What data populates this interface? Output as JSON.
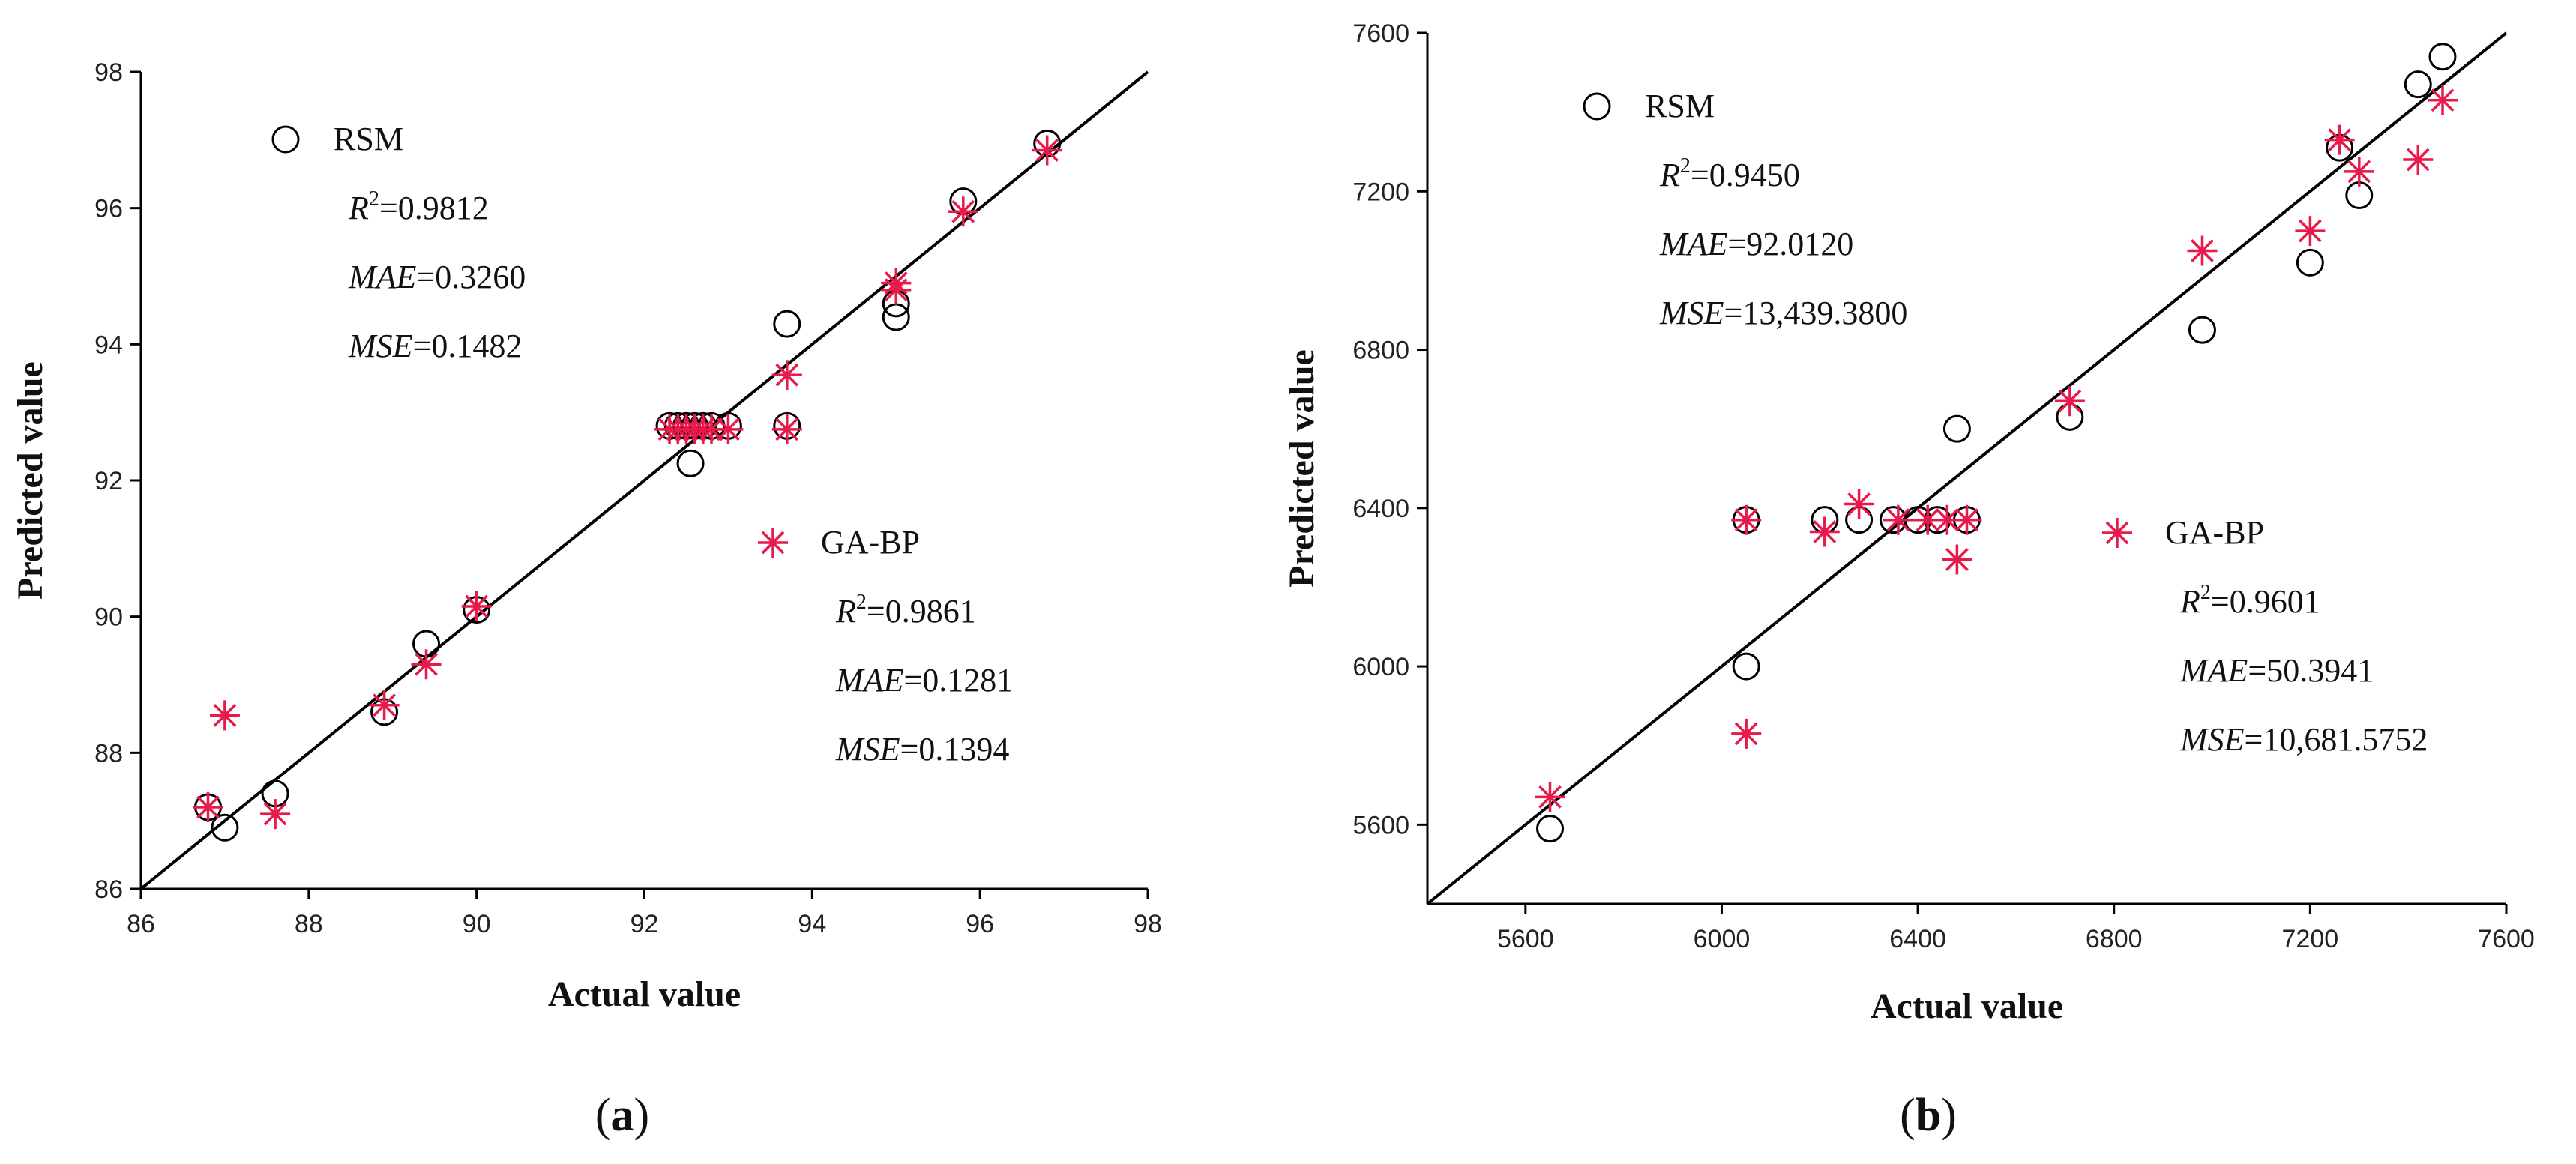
{
  "chart_data": [
    {
      "type": "scatter",
      "panel": "(a)",
      "panel_paren_open": "(",
      "panel_letter": "a",
      "panel_paren_close": ")",
      "xlabel": "Actual value",
      "ylabel": "Predicted value",
      "xlim": [
        86,
        98
      ],
      "ylim": [
        86,
        98
      ],
      "xticks": [
        86,
        88,
        90,
        92,
        94,
        96,
        98
      ],
      "yticks": [
        86,
        88,
        90,
        92,
        94,
        96,
        98
      ],
      "fit_line": [
        [
          86,
          86
        ],
        [
          98,
          98
        ]
      ],
      "series": [
        {
          "name": "RSM",
          "marker": "circle",
          "color": "#000000",
          "points": [
            [
              86.8,
              87.2
            ],
            [
              87.0,
              86.9
            ],
            [
              87.6,
              87.4
            ],
            [
              88.9,
              88.6
            ],
            [
              89.4,
              89.6
            ],
            [
              90.0,
              90.1
            ],
            [
              92.3,
              92.8
            ],
            [
              92.4,
              92.8
            ],
            [
              92.5,
              92.8
            ],
            [
              92.55,
              92.25
            ],
            [
              92.6,
              92.8
            ],
            [
              92.7,
              92.8
            ],
            [
              92.8,
              92.8
            ],
            [
              93.0,
              92.8
            ],
            [
              93.7,
              92.8
            ],
            [
              93.7,
              94.3
            ],
            [
              95.0,
              94.4
            ],
            [
              95.0,
              94.6
            ],
            [
              95.8,
              96.1
            ],
            [
              96.8,
              96.95
            ]
          ],
          "stats": {
            "r2_value": "0.9812",
            "mae_value": "0.3260",
            "mse_value": "0.1482"
          }
        },
        {
          "name": "GA-BP",
          "marker": "star",
          "color": "#e8194b",
          "points": [
            [
              86.8,
              87.2
            ],
            [
              87.0,
              88.55
            ],
            [
              87.6,
              87.1
            ],
            [
              88.9,
              88.7
            ],
            [
              89.4,
              89.3
            ],
            [
              90.0,
              90.15
            ],
            [
              92.3,
              92.75
            ],
            [
              92.4,
              92.75
            ],
            [
              92.5,
              92.75
            ],
            [
              92.6,
              92.75
            ],
            [
              92.7,
              92.75
            ],
            [
              92.8,
              92.75
            ],
            [
              93.0,
              92.75
            ],
            [
              93.7,
              92.75
            ],
            [
              93.7,
              93.55
            ],
            [
              95.0,
              94.9
            ],
            [
              95.0,
              94.8
            ],
            [
              95.8,
              95.95
            ],
            [
              96.8,
              96.85
            ]
          ],
          "stats": {
            "r2_value": "0.9861",
            "mae_value": "0.1281",
            "mse_value": "0.1394"
          }
        }
      ]
    },
    {
      "type": "scatter",
      "panel": "(b)",
      "panel_paren_open": "(",
      "panel_letter": "b",
      "panel_paren_close": ")",
      "xlabel": "Actual value",
      "ylabel": "Predicted value",
      "xlim": [
        5400,
        7600
      ],
      "ylim": [
        5400,
        7600
      ],
      "xticks": [
        5600,
        6000,
        6400,
        6800,
        7200,
        7600
      ],
      "yticks": [
        5600,
        6000,
        6400,
        6800,
        7200,
        7600
      ],
      "fit_line": [
        [
          5400,
          5400
        ],
        [
          7600,
          7600
        ]
      ],
      "series": [
        {
          "name": "RSM",
          "marker": "circle",
          "color": "#000000",
          "points": [
            [
              5650,
              5590
            ],
            [
              6050,
              6000
            ],
            [
              6050,
              6370
            ],
            [
              6210,
              6370
            ],
            [
              6280,
              6370
            ],
            [
              6350,
              6370
            ],
            [
              6400,
              6370
            ],
            [
              6440,
              6370
            ],
            [
              6480,
              6600
            ],
            [
              6500,
              6370
            ],
            [
              6710,
              6630
            ],
            [
              6980,
              6850
            ],
            [
              7200,
              7020
            ],
            [
              7260,
              7310
            ],
            [
              7300,
              7190
            ],
            [
              7420,
              7470
            ],
            [
              7470,
              7540
            ]
          ],
          "stats": {
            "r2_value": "0.9450",
            "mae_value": "92.0120",
            "mse_value": "13,439.3800"
          }
        },
        {
          "name": "GA-BP",
          "marker": "star",
          "color": "#e8194b",
          "points": [
            [
              5650,
              5670
            ],
            [
              6050,
              5830
            ],
            [
              6050,
              6370
            ],
            [
              6210,
              6340
            ],
            [
              6280,
              6410
            ],
            [
              6360,
              6370
            ],
            [
              6420,
              6370
            ],
            [
              6460,
              6370
            ],
            [
              6480,
              6270
            ],
            [
              6500,
              6370
            ],
            [
              6710,
              6670
            ],
            [
              6980,
              7050
            ],
            [
              7200,
              7100
            ],
            [
              7260,
              7330
            ],
            [
              7300,
              7250
            ],
            [
              7420,
              7280
            ],
            [
              7470,
              7430
            ]
          ],
          "stats": {
            "r2_value": "0.9601",
            "mae_value": "50.3941",
            "mse_value": "10,681.5752"
          }
        }
      ]
    }
  ],
  "labels": {
    "r2_letter": "R",
    "r2_sup": "2",
    "mae_label": "MAE",
    "mse_label": "MSE",
    "equals": "="
  }
}
